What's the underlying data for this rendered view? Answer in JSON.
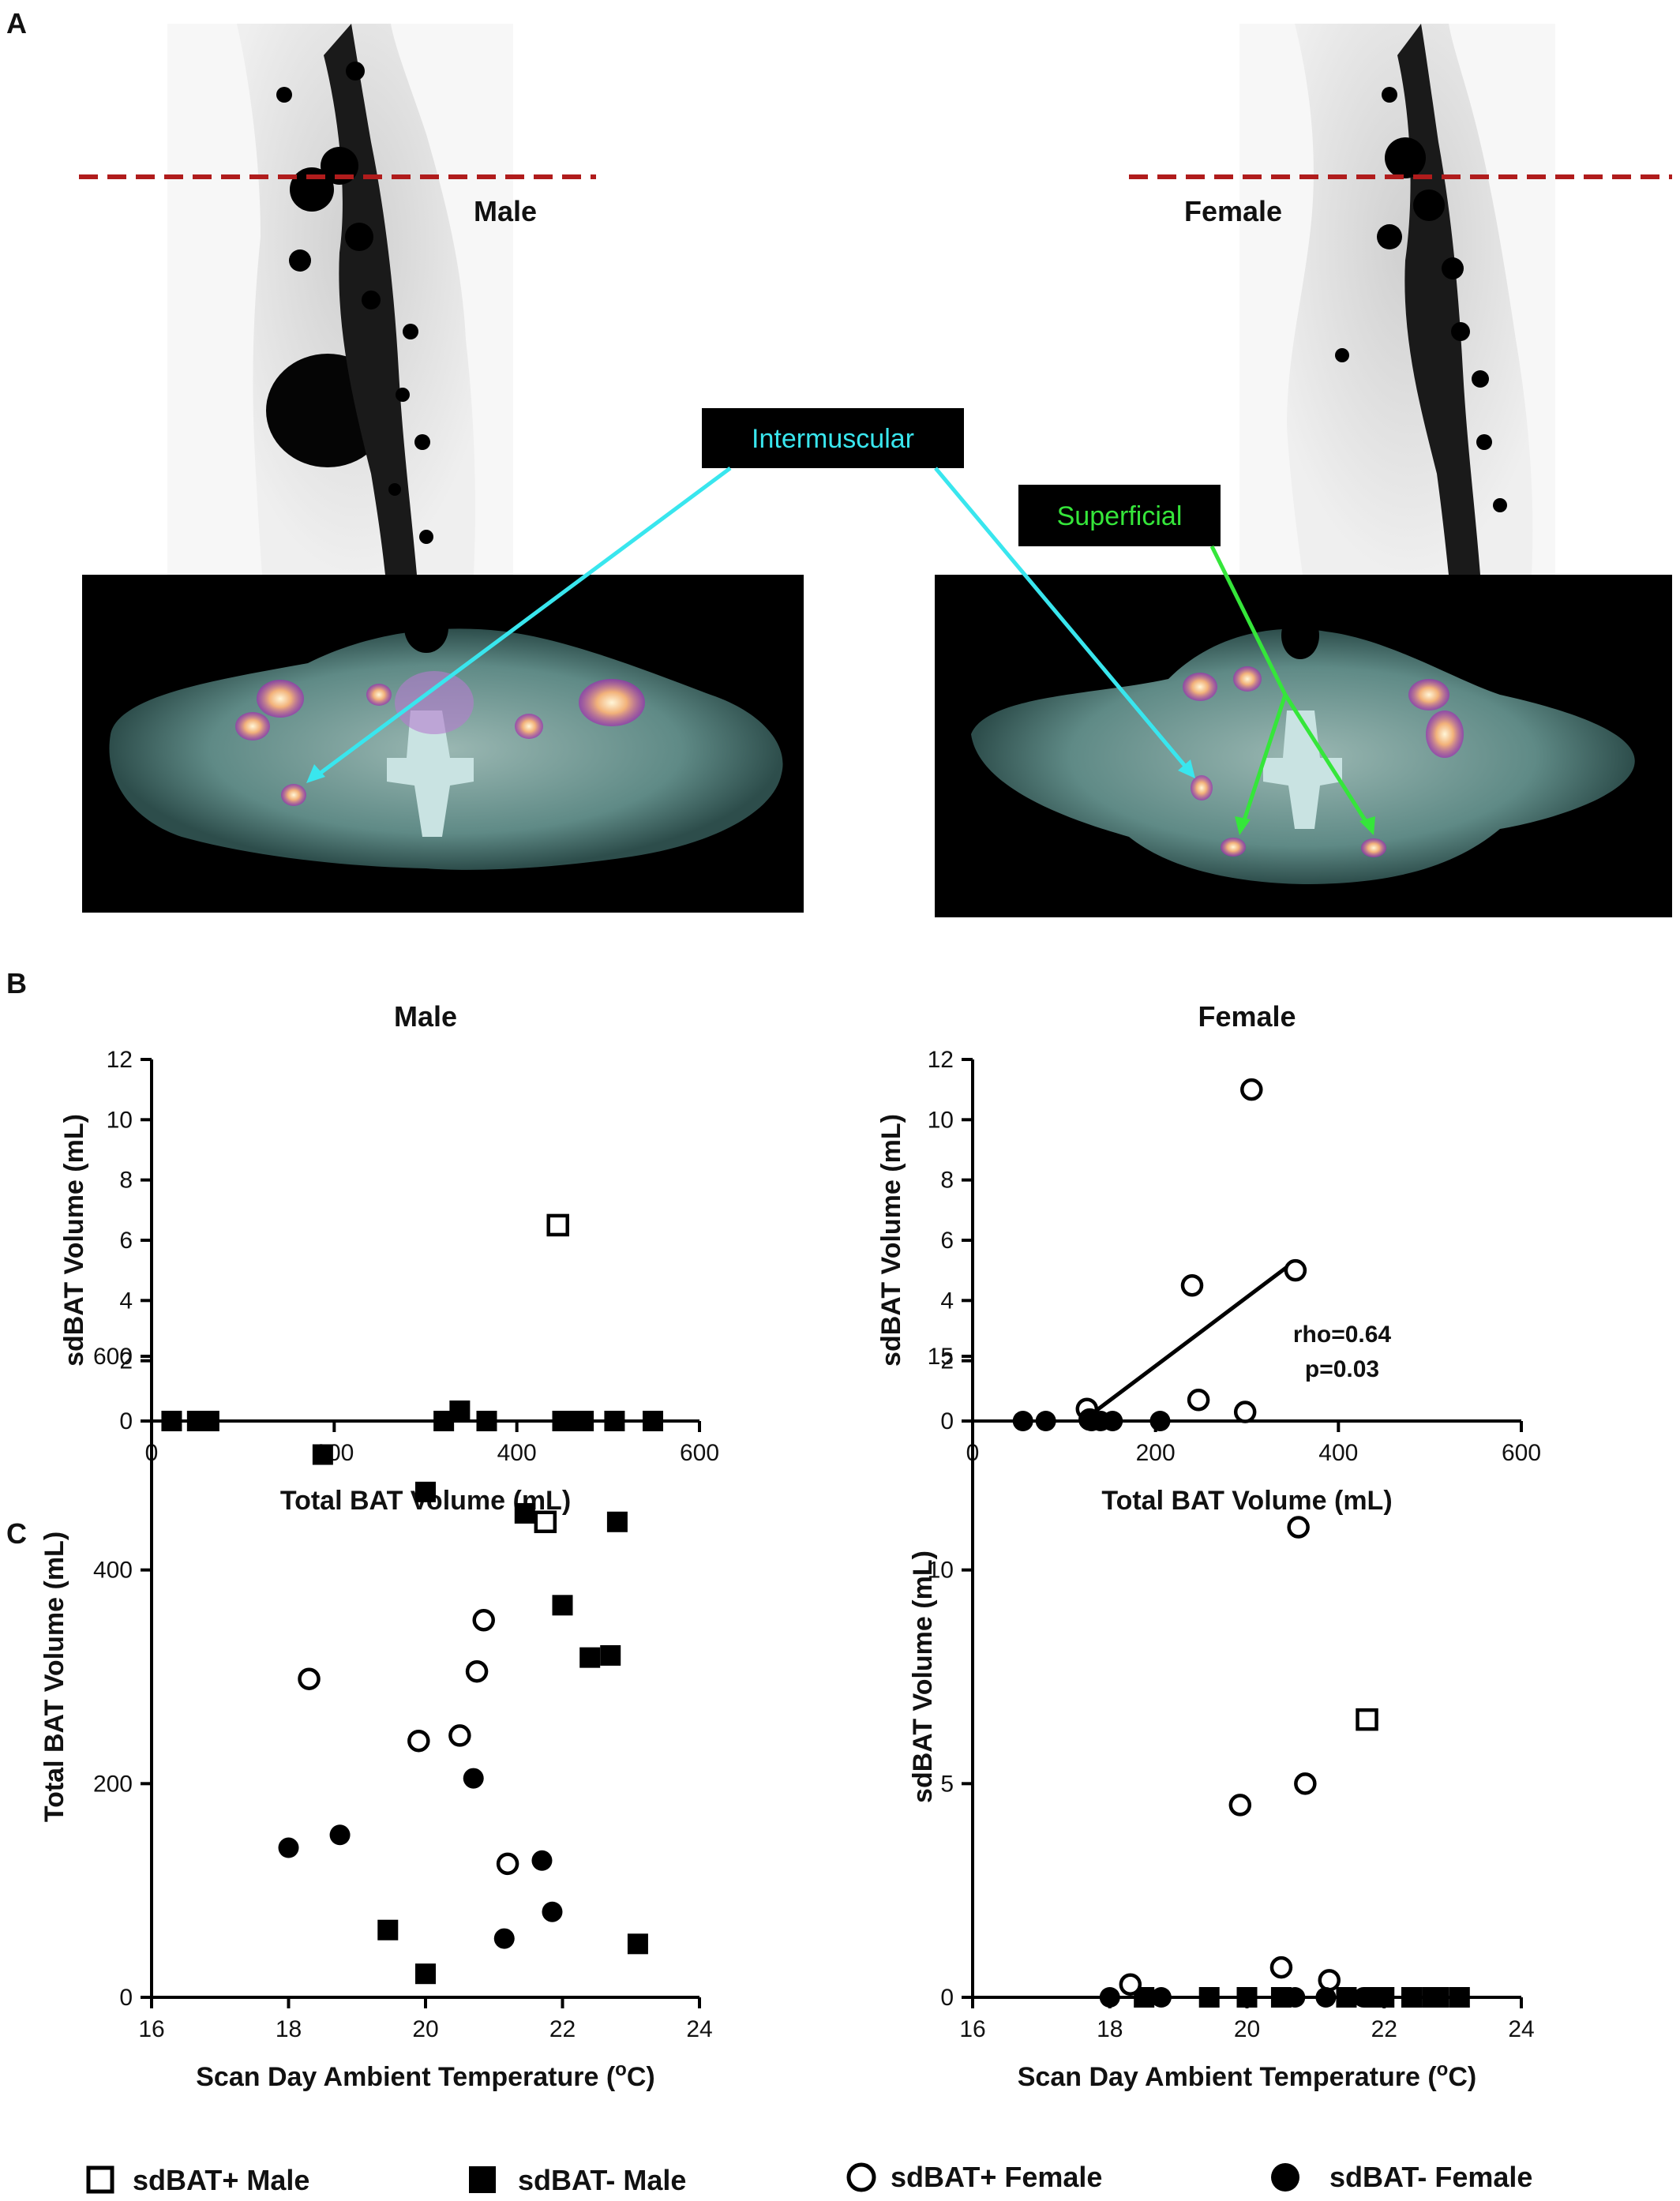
{
  "panels": {
    "a": "A",
    "b": "B",
    "c": "C"
  },
  "panel_a": {
    "male_label": "Male",
    "female_label": "Female",
    "callout_intermuscular": "Intermuscular",
    "callout_superficial": "Superficial",
    "colors": {
      "dashed_line": "#b01c1c",
      "intermuscular": "#39e6ee",
      "superficial": "#35e63a",
      "callout_bg": "#000000"
    }
  },
  "legend": {
    "items": [
      {
        "label": "sdBAT+ Male",
        "marker": "square-open"
      },
      {
        "label": "sdBAT- Male",
        "marker": "square-filled"
      },
      {
        "label": "sdBAT+ Female",
        "marker": "circle-open"
      },
      {
        "label": "sdBAT- Female",
        "marker": "circle-filled"
      }
    ]
  },
  "chart_data": [
    {
      "id": "b-male",
      "type": "scatter",
      "title": "Male",
      "xlabel": "Total BAT Volume (mL)",
      "ylabel": "sdBAT Volume (mL)",
      "xlim": [
        0,
        600
      ],
      "ylim": [
        0,
        12
      ],
      "xticks": [
        0,
        200,
        400,
        600
      ],
      "yticks": [
        0,
        2,
        4,
        6,
        8,
        10,
        12
      ],
      "series": [
        {
          "marker": "square-open",
          "points": [
            [
              445,
              6.5
            ]
          ]
        },
        {
          "marker": "square-filled",
          "points": [
            [
              22,
              0
            ],
            [
              50,
              0
            ],
            [
              63,
              0
            ],
            [
              320,
              0
            ],
            [
              367,
              0
            ],
            [
              450,
              0
            ],
            [
              453,
              0
            ],
            [
              473,
              0
            ],
            [
              507,
              0
            ],
            [
              549,
              0
            ]
          ]
        }
      ]
    },
    {
      "id": "b-female",
      "type": "scatter",
      "title": "Female",
      "xlabel": "Total BAT Volume (mL)",
      "ylabel": "sdBAT Volume (mL)",
      "xlim": [
        0,
        600
      ],
      "ylim": [
        0,
        12
      ],
      "xticks": [
        0,
        200,
        400,
        600
      ],
      "yticks": [
        0,
        2,
        4,
        6,
        8,
        10,
        12
      ],
      "series": [
        {
          "marker": "circle-open",
          "points": [
            [
              125,
              0.4
            ],
            [
              128,
              0.05
            ],
            [
              240,
              4.5
            ],
            [
              247,
              0.7
            ],
            [
              298,
              0.3
            ],
            [
              305,
              11
            ],
            [
              353,
              5
            ]
          ]
        },
        {
          "marker": "circle-filled",
          "points": [
            [
              55,
              0
            ],
            [
              80,
              0
            ],
            [
              130,
              0
            ],
            [
              140,
              0
            ],
            [
              153,
              0
            ],
            [
              205,
              0
            ]
          ]
        }
      ],
      "fit_line": [
        [
          120,
          0
        ],
        [
          352,
          5.3
        ]
      ],
      "annotation": [
        "rho=0.64",
        "p=0.03"
      ]
    },
    {
      "id": "c-total",
      "type": "scatter",
      "title": "",
      "xlabel": "Scan Day Ambient Temperature (°C)",
      "ylabel": "Total BAT Volume (mL)",
      "xlim": [
        16,
        24
      ],
      "ylim": [
        0,
        600
      ],
      "xticks": [
        16,
        18,
        20,
        22,
        24
      ],
      "yticks": [
        0,
        200,
        400,
        600
      ],
      "series": [
        {
          "marker": "square-open",
          "points": [
            [
              21.75,
              445
            ]
          ]
        },
        {
          "marker": "square-filled",
          "points": [
            [
              18.5,
              508
            ],
            [
              20.5,
              549
            ],
            [
              20.0,
              473
            ],
            [
              21.45,
              453
            ],
            [
              22.8,
              445
            ],
            [
              22.0,
              367
            ],
            [
              22.4,
              318
            ],
            [
              22.7,
              320
            ],
            [
              19.45,
              63
            ],
            [
              20.0,
              22
            ],
            [
              23.1,
              50
            ]
          ]
        },
        {
          "marker": "circle-open",
          "points": [
            [
              18.3,
              298
            ],
            [
              19.9,
              240
            ],
            [
              20.85,
              353
            ],
            [
              20.75,
              305
            ],
            [
              20.5,
              245
            ],
            [
              21.2,
              125
            ]
          ]
        },
        {
          "marker": "circle-filled",
          "points": [
            [
              18.0,
              140
            ],
            [
              18.75,
              152
            ],
            [
              20.7,
              205
            ],
            [
              21.7,
              128
            ],
            [
              21.15,
              55
            ],
            [
              21.85,
              80
            ]
          ]
        }
      ]
    },
    {
      "id": "c-sd",
      "type": "scatter",
      "title": "",
      "xlabel": "Scan Day Ambient Temperature (°C)",
      "ylabel": "sdBAT Volume (mL)",
      "xlim": [
        16,
        24
      ],
      "ylim": [
        0,
        15
      ],
      "xticks": [
        16,
        18,
        20,
        22,
        24
      ],
      "yticks": [
        0,
        5,
        10,
        15
      ],
      "series": [
        {
          "marker": "square-open",
          "points": [
            [
              21.75,
              6.5
            ]
          ]
        },
        {
          "marker": "square-filled",
          "points": [
            [
              18.5,
              0
            ],
            [
              19.45,
              0
            ],
            [
              20.0,
              0
            ],
            [
              20.5,
              0
            ],
            [
              21.45,
              0
            ],
            [
              21.85,
              0
            ],
            [
              22.0,
              0
            ],
            [
              22.4,
              0
            ],
            [
              22.7,
              0
            ],
            [
              22.8,
              0
            ],
            [
              23.1,
              0
            ]
          ]
        },
        {
          "marker": "circle-open",
          "points": [
            [
              18.3,
              0.3
            ],
            [
              19.9,
              4.5
            ],
            [
              20.5,
              0.7
            ],
            [
              20.75,
              11
            ],
            [
              20.85,
              5
            ],
            [
              21.2,
              0.4
            ]
          ]
        },
        {
          "marker": "circle-filled",
          "points": [
            [
              18.0,
              0
            ],
            [
              18.75,
              0
            ],
            [
              20.7,
              0
            ],
            [
              21.15,
              0
            ],
            [
              21.7,
              0
            ],
            [
              21.85,
              0
            ]
          ]
        }
      ]
    }
  ]
}
